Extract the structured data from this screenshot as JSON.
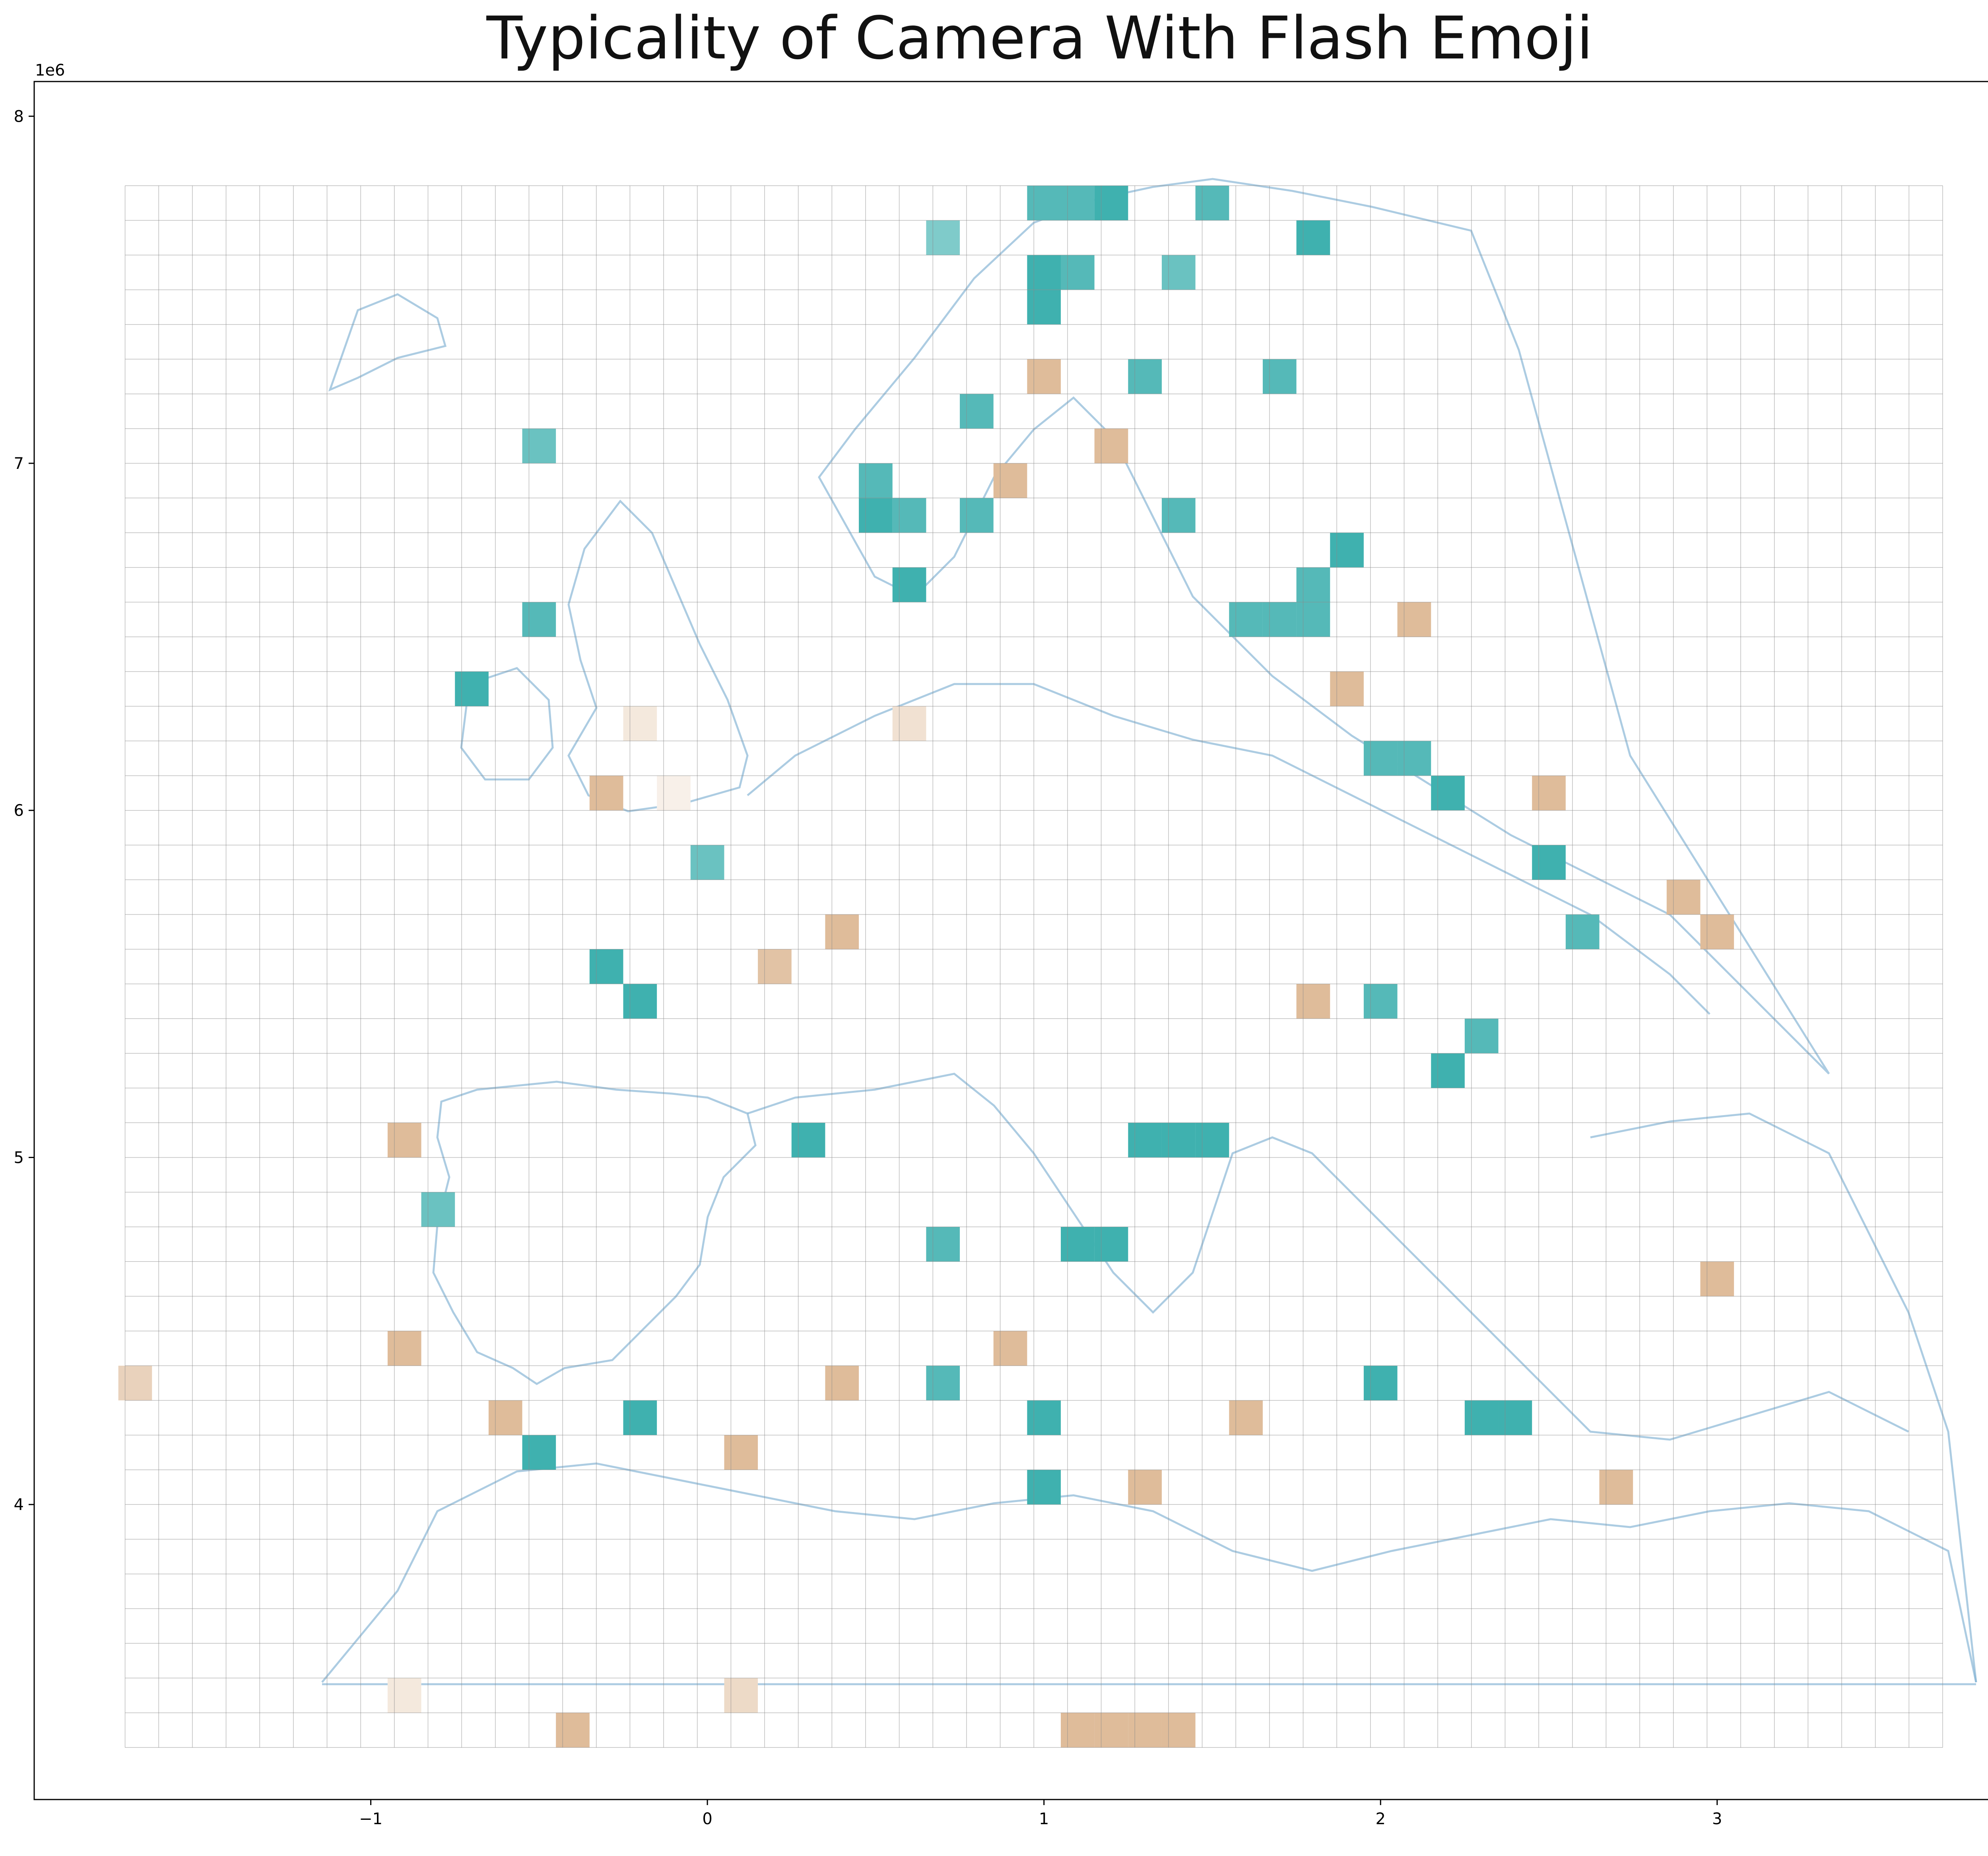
{
  "chart_data": {
    "type": "heatmap",
    "title": "Typicality of Camera With Flash Emoji",
    "xlabel": "",
    "ylabel": "",
    "x_offset_label": "1e6",
    "y_offset_label": "1e6",
    "xlim": [
      -2.0,
      3.95
    ],
    "ylim": [
      3.15,
      8.1
    ],
    "x_ticks": [
      {
        "value": -1,
        "label": "−1"
      },
      {
        "value": 0,
        "label": "0"
      },
      {
        "value": 1,
        "label": "1"
      },
      {
        "value": 2,
        "label": "2"
      },
      {
        "value": 3,
        "label": "3"
      }
    ],
    "y_ticks": [
      {
        "value": 4,
        "label": "4"
      },
      {
        "value": 5,
        "label": "5"
      },
      {
        "value": 6,
        "label": "6"
      },
      {
        "value": 7,
        "label": "7"
      },
      {
        "value": 8,
        "label": "8"
      }
    ],
    "grid": {
      "x_start": -1.73,
      "y_start": 3.3,
      "cell_size": 0.1,
      "cols": 54,
      "rows": 45
    },
    "grid_on": true,
    "colormap": {
      "type": "diverging",
      "low_color": "#dbb48f",
      "mid_color": "#ffffff",
      "high_color": "#2aa8a6",
      "value_range": [
        -1,
        1
      ]
    },
    "cells": [
      {
        "x": 1.0,
        "y": 7.75,
        "v": 0.8
      },
      {
        "x": 1.1,
        "y": 7.75,
        "v": 0.8
      },
      {
        "x": 1.2,
        "y": 7.75,
        "v": 0.9
      },
      {
        "x": 1.0,
        "y": 7.55,
        "v": 0.9
      },
      {
        "x": 1.1,
        "y": 7.55,
        "v": 0.8
      },
      {
        "x": 1.0,
        "y": 7.45,
        "v": 0.9
      },
      {
        "x": 0.7,
        "y": 7.65,
        "v": 0.6
      },
      {
        "x": 1.5,
        "y": 7.75,
        "v": 0.8
      },
      {
        "x": 1.8,
        "y": 7.65,
        "v": 0.9
      },
      {
        "x": 1.3,
        "y": 7.25,
        "v": 0.8
      },
      {
        "x": 1.4,
        "y": 7.55,
        "v": 0.7
      },
      {
        "x": 1.7,
        "y": 7.25,
        "v": 0.8
      },
      {
        "x": 0.8,
        "y": 7.15,
        "v": 0.8
      },
      {
        "x": 0.5,
        "y": 6.95,
        "v": 0.8
      },
      {
        "x": 0.5,
        "y": 6.85,
        "v": 0.9
      },
      {
        "x": 0.6,
        "y": 6.85,
        "v": 0.8
      },
      {
        "x": 0.8,
        "y": 6.85,
        "v": 0.8
      },
      {
        "x": 0.6,
        "y": 6.65,
        "v": 0.9
      },
      {
        "x": 1.4,
        "y": 6.85,
        "v": 0.8
      },
      {
        "x": 1.6,
        "y": 6.55,
        "v": 0.8
      },
      {
        "x": 1.7,
        "y": 6.55,
        "v": 0.8
      },
      {
        "x": 1.8,
        "y": 6.55,
        "v": 0.8
      },
      {
        "x": 1.9,
        "y": 6.75,
        "v": 0.9
      },
      {
        "x": 1.8,
        "y": 6.65,
        "v": 0.8
      },
      {
        "x": -0.5,
        "y": 7.05,
        "v": 0.7
      },
      {
        "x": -0.5,
        "y": 6.55,
        "v": 0.8
      },
      {
        "x": -0.7,
        "y": 6.35,
        "v": 0.9
      },
      {
        "x": 0.0,
        "y": 5.85,
        "v": 0.7
      },
      {
        "x": -0.3,
        "y": 5.55,
        "v": 0.9
      },
      {
        "x": -0.2,
        "y": 5.45,
        "v": 0.9
      },
      {
        "x": 2.1,
        "y": 6.15,
        "v": 0.8
      },
      {
        "x": 2.0,
        "y": 6.15,
        "v": 0.8
      },
      {
        "x": 2.2,
        "y": 6.05,
        "v": 0.9
      },
      {
        "x": 2.5,
        "y": 5.85,
        "v": 0.9
      },
      {
        "x": 2.6,
        "y": 5.65,
        "v": 0.8
      },
      {
        "x": 2.0,
        "y": 5.45,
        "v": 0.8
      },
      {
        "x": 2.2,
        "y": 5.25,
        "v": 0.9
      },
      {
        "x": 2.3,
        "y": 5.35,
        "v": 0.8
      },
      {
        "x": 1.5,
        "y": 5.05,
        "v": 0.9
      },
      {
        "x": 1.3,
        "y": 5.05,
        "v": 0.9
      },
      {
        "x": 1.4,
        "y": 5.05,
        "v": 0.9
      },
      {
        "x": 0.3,
        "y": 5.05,
        "v": 0.9
      },
      {
        "x": 1.2,
        "y": 4.75,
        "v": 0.9
      },
      {
        "x": 1.1,
        "y": 4.75,
        "v": 0.9
      },
      {
        "x": 0.7,
        "y": 4.75,
        "v": 0.8
      },
      {
        "x": 2.3,
        "y": 4.25,
        "v": 0.9
      },
      {
        "x": 2.4,
        "y": 4.25,
        "v": 0.9
      },
      {
        "x": -0.5,
        "y": 4.15,
        "v": 0.9
      },
      {
        "x": 1.0,
        "y": 4.05,
        "v": 0.9
      },
      {
        "x": 1.0,
        "y": 4.25,
        "v": 0.9
      },
      {
        "x": -0.2,
        "y": 4.25,
        "v": 0.9
      },
      {
        "x": 2.0,
        "y": 4.35,
        "v": 0.9
      },
      {
        "x": 0.7,
        "y": 4.35,
        "v": 0.8
      },
      {
        "x": -0.8,
        "y": 4.85,
        "v": 0.7
      },
      {
        "x": -0.3,
        "y": 6.05,
        "v": -0.9
      },
      {
        "x": -0.2,
        "y": 6.25,
        "v": -0.3
      },
      {
        "x": -0.1,
        "y": 6.05,
        "v": -0.2
      },
      {
        "x": 0.2,
        "y": 5.55,
        "v": -0.8
      },
      {
        "x": 0.4,
        "y": 5.65,
        "v": -0.9
      },
      {
        "x": 0.6,
        "y": 6.25,
        "v": -0.4
      },
      {
        "x": 0.9,
        "y": 6.95,
        "v": -0.9
      },
      {
        "x": 1.0,
        "y": 7.25,
        "v": -0.9
      },
      {
        "x": 1.2,
        "y": 7.05,
        "v": -0.9
      },
      {
        "x": 1.9,
        "y": 6.35,
        "v": -0.9
      },
      {
        "x": 2.1,
        "y": 6.55,
        "v": -0.9
      },
      {
        "x": 2.5,
        "y": 6.05,
        "v": -0.9
      },
      {
        "x": 2.9,
        "y": 5.75,
        "v": -0.9
      },
      {
        "x": 3.0,
        "y": 5.65,
        "v": -0.9
      },
      {
        "x": 1.8,
        "y": 5.45,
        "v": -0.9
      },
      {
        "x": 0.9,
        "y": 4.45,
        "v": -0.9
      },
      {
        "x": 0.4,
        "y": 4.35,
        "v": -0.9
      },
      {
        "x": 0.1,
        "y": 4.15,
        "v": -0.9
      },
      {
        "x": -0.6,
        "y": 4.25,
        "v": -0.9
      },
      {
        "x": -0.9,
        "y": 5.05,
        "v": -0.9
      },
      {
        "x": -0.9,
        "y": 4.45,
        "v": -0.9
      },
      {
        "x": -1.7,
        "y": 4.35,
        "v": -0.6
      },
      {
        "x": -0.9,
        "y": 3.45,
        "v": -0.3
      },
      {
        "x": 0.1,
        "y": 3.45,
        "v": -0.5
      },
      {
        "x": -0.4,
        "y": 3.35,
        "v": -0.9
      },
      {
        "x": 1.1,
        "y": 3.35,
        "v": -0.9
      },
      {
        "x": 1.2,
        "y": 3.35,
        "v": -0.9
      },
      {
        "x": 1.3,
        "y": 3.35,
        "v": -0.9
      },
      {
        "x": 1.4,
        "y": 3.35,
        "v": -0.9
      },
      {
        "x": 3.0,
        "y": 4.65,
        "v": -0.9
      },
      {
        "x": 2.7,
        "y": 4.05,
        "v": -0.9
      },
      {
        "x": 1.6,
        "y": 4.25,
        "v": -0.9
      },
      {
        "x": 1.3,
        "y": 4.05,
        "v": -0.9
      }
    ]
  }
}
